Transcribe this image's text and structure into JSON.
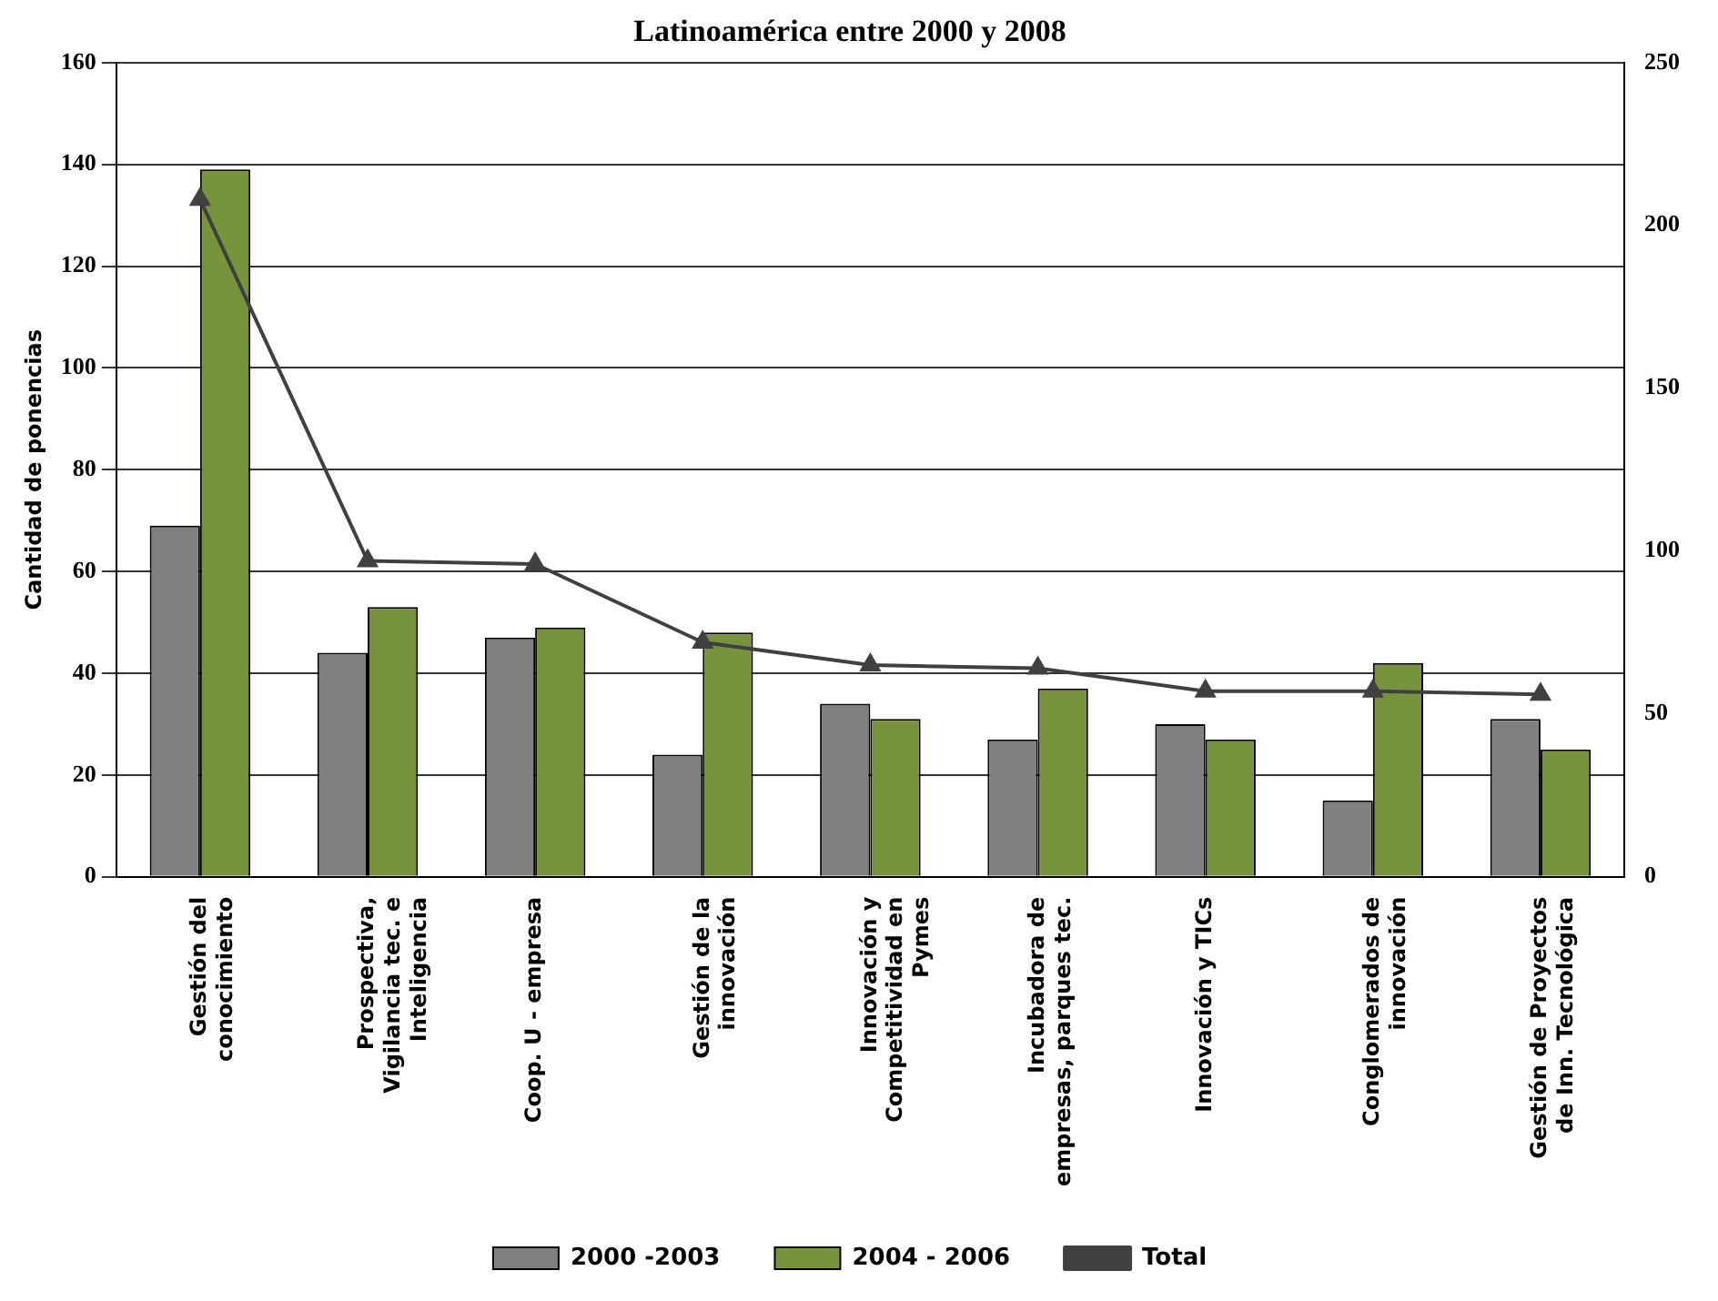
{
  "chart_data": {
    "type": "bar",
    "title": "Latinoamérica entre 2000 y 2008",
    "ylabel": "Cantidad de ponencias",
    "categories": [
      "Gestión del conocimiento",
      "Prospectiva, Vigilancia tec. e Inteligencia",
      "Coop. U - empresa",
      "Gestión de la innovación",
      "Innovación y Competitividad en Pymes",
      "Incubadora de empresas, parques tec.",
      "Innovación y TICs",
      "Conglomerados de innovación",
      "Gestión de Proyectos de Inn. Tecnológica"
    ],
    "series": [
      {
        "name": "2000 -2003",
        "color": "#808080",
        "values": [
          69,
          44,
          47,
          24,
          34,
          27,
          30,
          15,
          31
        ]
      },
      {
        "name": "2004 - 2006",
        "color": "#77933c",
        "values": [
          139,
          53,
          49,
          48,
          31,
          37,
          27,
          42,
          25
        ]
      },
      {
        "name": "Total",
        "type": "line",
        "axis": "y2",
        "color": "#404040",
        "values": [
          208,
          97,
          96,
          72,
          65,
          64,
          57,
          57,
          56
        ]
      }
    ],
    "ylim": [
      0,
      160
    ],
    "yticks": [
      0,
      20,
      40,
      60,
      80,
      100,
      120,
      140,
      160
    ],
    "y2lim": [
      0,
      250
    ],
    "y2ticks": [
      0,
      50,
      100,
      150,
      200,
      250
    ],
    "grid": "y",
    "legend": "bottom",
    "marker": "triangle",
    "line_style": "solid"
  }
}
